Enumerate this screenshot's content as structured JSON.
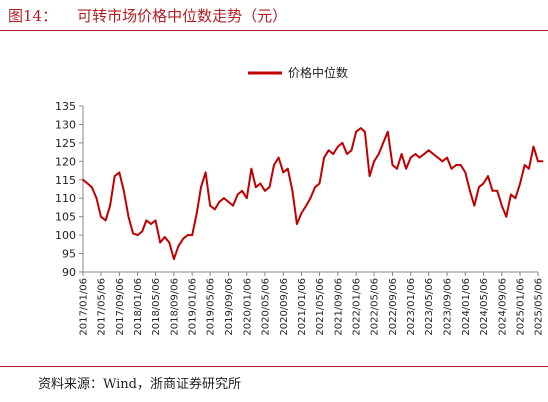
{
  "figure": {
    "number": "图14：",
    "title": "可转市场价格中位数走势（元）",
    "source": "资料来源：Wind，浙商证券研究所"
  },
  "colors": {
    "accent": "#b11f24",
    "series": "#c00000",
    "axis": "#888888",
    "text": "#222222"
  },
  "chart_data": {
    "type": "line",
    "title": "",
    "xlabel": "",
    "ylabel": "",
    "ylim": [
      90,
      135
    ],
    "yticks": [
      90,
      95,
      100,
      105,
      110,
      115,
      120,
      125,
      130,
      135
    ],
    "xticks": [
      "2017/01/06",
      "2017/05/06",
      "2017/09/06",
      "2018/01/06",
      "2018/05/06",
      "2018/09/06",
      "2019/01/06",
      "2019/05/06",
      "2019/09/06",
      "2020/01/06",
      "2020/05/06",
      "2020/09/06",
      "2021/01/06",
      "2021/05/06",
      "2021/09/06",
      "2022/01/06",
      "2022/05/06",
      "2022/09/06",
      "2023/01/06",
      "2023/05/06",
      "2023/09/06",
      "2024/01/06",
      "2024/05/06",
      "2024/09/06",
      "2025/01/06",
      "2025/05/06"
    ],
    "grid": false,
    "legend": "top-center",
    "series": [
      {
        "name": "价格中位数",
        "x": [
          "2017/01/06",
          "2017/02/06",
          "2017/03/06",
          "2017/04/06",
          "2017/05/06",
          "2017/06/06",
          "2017/07/06",
          "2017/08/06",
          "2017/09/06",
          "2017/10/06",
          "2017/11/06",
          "2017/12/06",
          "2018/01/06",
          "2018/02/06",
          "2018/03/06",
          "2018/04/06",
          "2018/05/06",
          "2018/06/06",
          "2018/07/06",
          "2018/08/06",
          "2018/09/06",
          "2018/10/06",
          "2018/11/06",
          "2018/12/06",
          "2019/01/06",
          "2019/02/06",
          "2019/03/06",
          "2019/04/06",
          "2019/05/06",
          "2019/06/06",
          "2019/07/06",
          "2019/08/06",
          "2019/09/06",
          "2019/10/06",
          "2019/11/06",
          "2019/12/06",
          "2020/01/06",
          "2020/02/06",
          "2020/03/06",
          "2020/04/06",
          "2020/05/06",
          "2020/06/06",
          "2020/07/06",
          "2020/08/06",
          "2020/09/06",
          "2020/10/06",
          "2020/11/06",
          "2020/12/06",
          "2021/01/06",
          "2021/02/06",
          "2021/03/06",
          "2021/04/06",
          "2021/05/06",
          "2021/06/06",
          "2021/07/06",
          "2021/08/06",
          "2021/09/06",
          "2021/10/06",
          "2021/11/06",
          "2021/12/06",
          "2022/01/06",
          "2022/02/06",
          "2022/03/06",
          "2022/04/06",
          "2022/05/06",
          "2022/06/06",
          "2022/07/06",
          "2022/08/06",
          "2022/09/06",
          "2022/10/06",
          "2022/11/06",
          "2022/12/06",
          "2023/01/06",
          "2023/02/06",
          "2023/03/06",
          "2023/04/06",
          "2023/05/06",
          "2023/06/06",
          "2023/07/06",
          "2023/08/06",
          "2023/09/06",
          "2023/10/06",
          "2023/11/06",
          "2023/12/06",
          "2024/01/06",
          "2024/02/06",
          "2024/03/06",
          "2024/04/06",
          "2024/05/06",
          "2024/06/06",
          "2024/07/06",
          "2024/08/06",
          "2024/09/06",
          "2024/10/06",
          "2024/11/06",
          "2024/12/06",
          "2025/01/06",
          "2025/02/06",
          "2025/03/06",
          "2025/04/06",
          "2025/05/06",
          "2025/06/06"
        ],
        "values": [
          115,
          114,
          113,
          110,
          105,
          104,
          108,
          116,
          117,
          112,
          105,
          100.5,
          100,
          101,
          104,
          103,
          104,
          98,
          99.5,
          98,
          93.5,
          97,
          99,
          100,
          100,
          106,
          113,
          117,
          108,
          107,
          109,
          110,
          109,
          108,
          111,
          112,
          110,
          118,
          113,
          114,
          112,
          113,
          119,
          121,
          117,
          118,
          112,
          103,
          106,
          108,
          110,
          113,
          114,
          121,
          123,
          122,
          124,
          125,
          122,
          123,
          128,
          129,
          128,
          116,
          120,
          122,
          125,
          128,
          119,
          118,
          122,
          118,
          121,
          122,
          121,
          122,
          123,
          122,
          121,
          120,
          121,
          118,
          119,
          119,
          117,
          112,
          108,
          113,
          114,
          116,
          112,
          112,
          108,
          105,
          111,
          110,
          114,
          119,
          118,
          124,
          120,
          120
        ]
      }
    ]
  }
}
